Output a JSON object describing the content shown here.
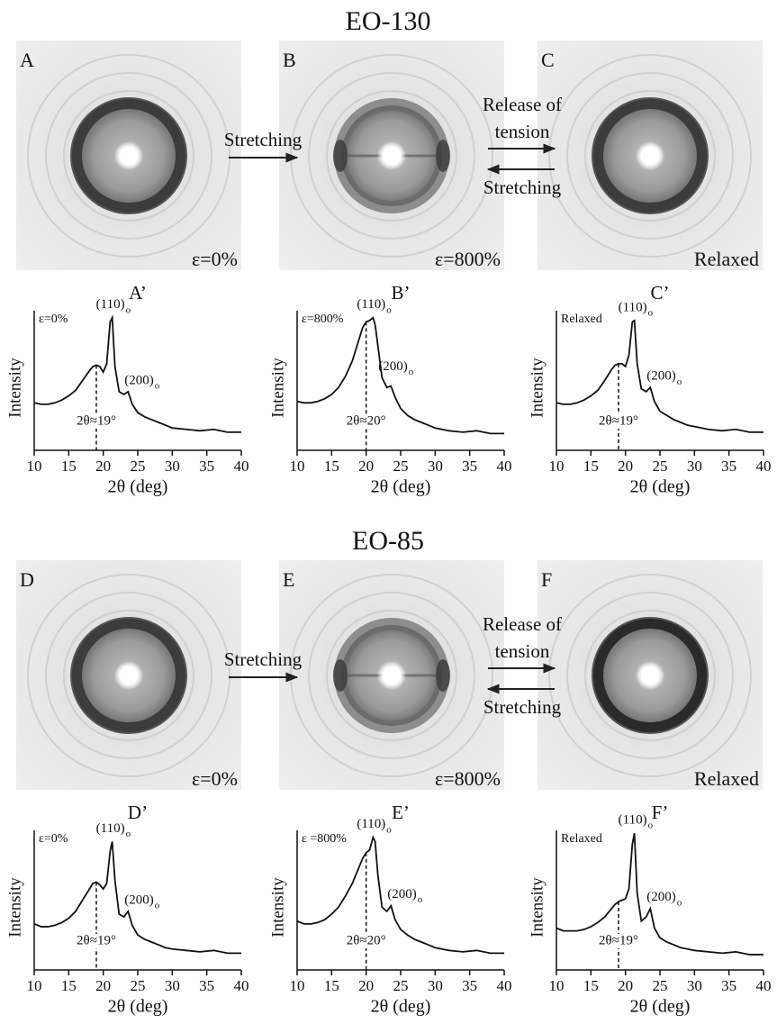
{
  "groups": [
    {
      "title": "EO-130",
      "patterns": [
        {
          "letter": "A",
          "label": "ε=0%"
        },
        {
          "letter": "B",
          "label": "ε=800%"
        },
        {
          "letter": "C",
          "label": "Relaxed"
        }
      ],
      "forward": "Stretching",
      "release": [
        "Release of",
        "tension"
      ],
      "back": "Stretching"
    },
    {
      "title": "EO-85",
      "patterns": [
        {
          "letter": "D",
          "label": "ε=0%"
        },
        {
          "letter": "E",
          "label": "ε=800%"
        },
        {
          "letter": "F",
          "label": "Relaxed"
        }
      ],
      "forward": "Stretching",
      "release": [
        "Release of",
        "tension"
      ],
      "back": "Stretching"
    }
  ],
  "chart_data": [
    {
      "type": "line",
      "title": "A’",
      "inset_label": "ε=0%",
      "xlabel": "2θ (deg)",
      "ylabel": "Intensity",
      "x": [
        10,
        11,
        12,
        13,
        14,
        15,
        16,
        17,
        18,
        18.5,
        19,
        19.5,
        20,
        20.5,
        21,
        21.3,
        21.7,
        22.3,
        23,
        23.6,
        24.2,
        25,
        26,
        27,
        28,
        29,
        30,
        32,
        34,
        36,
        38,
        40
      ],
      "series": [
        {
          "color": "#111",
          "values": [
            34,
            33,
            33,
            34,
            36,
            39,
            43,
            50,
            57,
            60,
            61,
            60,
            56,
            62,
            92,
            95,
            60,
            42,
            40,
            42,
            33,
            27,
            24,
            22,
            20,
            18,
            16,
            15,
            14,
            15,
            13,
            13
          ]
        }
      ],
      "peaks": [
        {
          "label": "(110)",
          "sub": "o"
        },
        {
          "label": "(200)",
          "sub": "o"
        }
      ],
      "marker": {
        "value": 19,
        "label": "2θ≈19°"
      },
      "xlim": [
        10,
        40
      ],
      "ylim": [
        0,
        100
      ],
      "xticks": [
        10,
        15,
        20,
        25,
        30,
        35,
        40
      ]
    },
    {
      "type": "line",
      "title": "B’",
      "inset_label": "ε=800%",
      "xlabel": "2θ (deg)",
      "ylabel": "Intensity",
      "x": [
        10,
        11,
        12,
        13,
        14,
        15,
        16,
        17,
        18,
        18.5,
        19,
        19.5,
        20,
        20.5,
        21,
        21.3,
        21.7,
        22.3,
        23,
        23.6,
        24.2,
        25,
        26,
        27,
        28,
        29,
        30,
        32,
        34,
        36,
        38,
        40
      ],
      "series": [
        {
          "color": "#111",
          "values": [
            35,
            34,
            34,
            35,
            37,
            40,
            45,
            53,
            64,
            72,
            80,
            88,
            92,
            93,
            95,
            90,
            75,
            52,
            45,
            46,
            38,
            30,
            25,
            22,
            20,
            18,
            16,
            14,
            13,
            14,
            12,
            12
          ]
        }
      ],
      "peaks": [
        {
          "label": "(110)",
          "sub": "o"
        },
        {
          "label": "(200)",
          "sub": "o"
        }
      ],
      "marker": {
        "value": 20,
        "label": "2θ≈20°"
      },
      "xlim": [
        10,
        40
      ],
      "ylim": [
        0,
        100
      ],
      "xticks": [
        10,
        15,
        20,
        25,
        30,
        35,
        40
      ]
    },
    {
      "type": "line",
      "title": "C’",
      "inset_label": "Relaxed",
      "xlabel": "2θ (deg)",
      "ylabel": "Intensity",
      "x": [
        10,
        11,
        12,
        13,
        14,
        15,
        16,
        17,
        18,
        18.5,
        19,
        19.5,
        20,
        20.5,
        21,
        21.3,
        21.7,
        22.3,
        23,
        23.6,
        24.2,
        25,
        26,
        27,
        28,
        29,
        30,
        32,
        34,
        36,
        38,
        40
      ],
      "series": [
        {
          "color": "#111",
          "values": [
            34,
            33,
            33,
            34,
            36,
            39,
            43,
            50,
            58,
            61,
            62,
            62,
            60,
            68,
            92,
            93,
            62,
            44,
            42,
            45,
            35,
            28,
            25,
            22,
            20,
            18,
            17,
            15,
            14,
            15,
            13,
            13
          ]
        }
      ],
      "peaks": [
        {
          "label": "(110)",
          "sub": "o"
        },
        {
          "label": "(200)",
          "sub": "o"
        }
      ],
      "marker": {
        "value": 19,
        "label": "2θ≈19°"
      },
      "xlim": [
        10,
        40
      ],
      "ylim": [
        0,
        100
      ],
      "xticks": [
        10,
        15,
        20,
        25,
        30,
        35,
        40
      ]
    },
    {
      "type": "line",
      "title": "D’",
      "inset_label": "ε=0%",
      "xlabel": "2θ (deg)",
      "ylabel": "Intensity",
      "x": [
        10,
        11,
        12,
        13,
        14,
        15,
        16,
        17,
        18,
        18.5,
        19,
        19.5,
        20,
        20.5,
        21,
        21.3,
        21.7,
        22.3,
        23,
        23.6,
        24.2,
        25,
        26,
        27,
        28,
        29,
        30,
        32,
        34,
        36,
        38,
        40
      ],
      "series": [
        {
          "color": "#111",
          "values": [
            33,
            31,
            31,
            32,
            34,
            37,
            42,
            50,
            58,
            62,
            63,
            61,
            58,
            62,
            85,
            92,
            64,
            40,
            38,
            42,
            32,
            25,
            22,
            20,
            18,
            16,
            15,
            14,
            13,
            14,
            12,
            12
          ]
        }
      ],
      "peaks": [
        {
          "label": "(110)",
          "sub": "o"
        },
        {
          "label": "(200)",
          "sub": "o"
        }
      ],
      "marker": {
        "value": 19,
        "label": "2θ≈19°"
      },
      "xlim": [
        10,
        40
      ],
      "ylim": [
        0,
        100
      ],
      "xticks": [
        10,
        15,
        20,
        25,
        30,
        35,
        40
      ]
    },
    {
      "type": "line",
      "title": "E’",
      "inset_label": "ε =800%",
      "xlabel": "2θ (deg)",
      "ylabel": "Intensity",
      "x": [
        10,
        11,
        12,
        13,
        14,
        15,
        16,
        17,
        18,
        18.5,
        19,
        19.5,
        20,
        20.5,
        21,
        21.3,
        21.7,
        22.3,
        23,
        23.6,
        24.2,
        25,
        26,
        27,
        28,
        29,
        30,
        32,
        34,
        36,
        38,
        40
      ],
      "series": [
        {
          "color": "#111",
          "values": [
            35,
            33,
            33,
            34,
            36,
            40,
            45,
            53,
            62,
            68,
            74,
            80,
            84,
            86,
            95,
            92,
            68,
            45,
            42,
            46,
            36,
            29,
            25,
            22,
            20,
            18,
            16,
            14,
            13,
            14,
            12,
            12
          ]
        }
      ],
      "peaks": [
        {
          "label": "(110)",
          "sub": "o"
        },
        {
          "label": "(200)",
          "sub": "o"
        }
      ],
      "marker": {
        "value": 20,
        "label": "2θ≈20°"
      },
      "xlim": [
        10,
        40
      ],
      "ylim": [
        0,
        100
      ],
      "xticks": [
        10,
        15,
        20,
        25,
        30,
        35,
        40
      ]
    },
    {
      "type": "line",
      "title": "F’",
      "inset_label": "Relaxed",
      "xlabel": "2θ (deg)",
      "ylabel": "Intensity",
      "x": [
        10,
        11,
        12,
        13,
        14,
        15,
        16,
        17,
        18,
        18.5,
        19,
        19.5,
        20,
        20.5,
        21,
        21.3,
        21.7,
        22.3,
        23,
        23.6,
        24.2,
        25,
        26,
        27,
        28,
        29,
        30,
        32,
        34,
        36,
        38,
        40
      ],
      "series": [
        {
          "color": "#111",
          "values": [
            30,
            28,
            28,
            28,
            29,
            31,
            34,
            38,
            44,
            47,
            49,
            50,
            51,
            58,
            90,
            98,
            55,
            35,
            38,
            44,
            30,
            23,
            20,
            18,
            16,
            15,
            14,
            13,
            12,
            13,
            11,
            11
          ]
        }
      ],
      "peaks": [
        {
          "label": "(110)",
          "sub": "o"
        },
        {
          "label": "(200)",
          "sub": "o"
        }
      ],
      "marker": {
        "value": 19,
        "label": "2θ≈19°"
      },
      "xlim": [
        10,
        40
      ],
      "ylim": [
        0,
        100
      ],
      "xticks": [
        10,
        15,
        20,
        25,
        30,
        35,
        40
      ]
    }
  ]
}
